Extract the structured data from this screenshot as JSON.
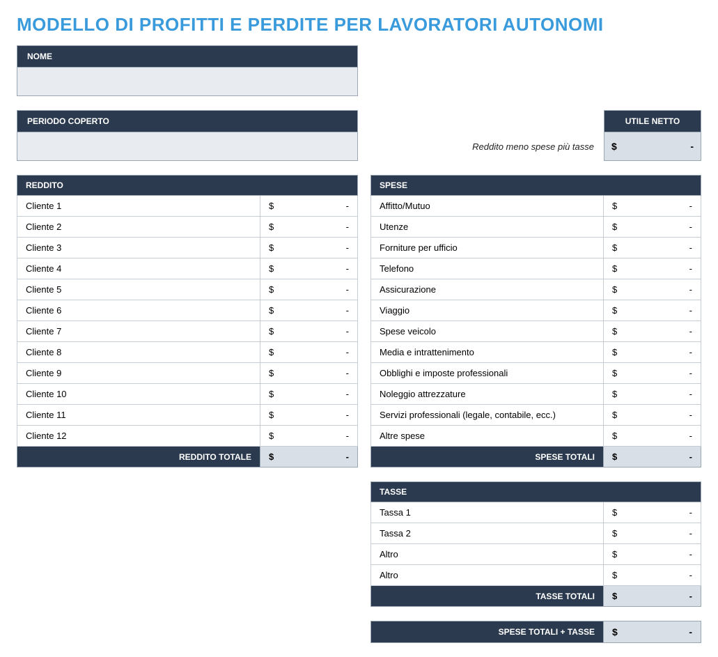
{
  "title": "MODELLO DI PROFITTI E PERDITE PER LAVORATORI AUTONOMI",
  "colors": {
    "title": "#3a9bdc",
    "header_bg": "#2b3a4e",
    "header_text": "#ffffff",
    "input_bg": "#e8ecf1",
    "total_amt_bg": "#d9dfe6",
    "border": "#c6cdd4",
    "border_dark": "#9aa6b2",
    "page_bg": "#ffffff"
  },
  "typography": {
    "title_fontsize": 26,
    "header_fontsize": 12,
    "body_fontsize": 13,
    "font_family": "Century Gothic"
  },
  "name_field": {
    "label": "NOME",
    "value": ""
  },
  "period_field": {
    "label": "PERIODO COPERTO",
    "value": ""
  },
  "net_income": {
    "header": "UTILE NETTO",
    "note": "Reddito meno spese più tasse",
    "currency": "$",
    "value": "-"
  },
  "revenue": {
    "header": "REDDITO",
    "rows": [
      {
        "label": "Cliente 1",
        "currency": "$",
        "value": "-"
      },
      {
        "label": "Cliente 2",
        "currency": "$",
        "value": "-"
      },
      {
        "label": "Cliente 3",
        "currency": "$",
        "value": "-"
      },
      {
        "label": "Cliente 4",
        "currency": "$",
        "value": "-"
      },
      {
        "label": "Cliente 5",
        "currency": "$",
        "value": "-"
      },
      {
        "label": "Cliente 6",
        "currency": "$",
        "value": "-"
      },
      {
        "label": "Cliente 7",
        "currency": "$",
        "value": "-"
      },
      {
        "label": "Cliente 8",
        "currency": "$",
        "value": "-"
      },
      {
        "label": "Cliente 9",
        "currency": "$",
        "value": "-"
      },
      {
        "label": "Cliente 10",
        "currency": "$",
        "value": "-"
      },
      {
        "label": "Cliente 11",
        "currency": "$",
        "value": "-"
      },
      {
        "label": "Cliente 12",
        "currency": "$",
        "value": "-"
      }
    ],
    "total": {
      "label": "REDDITO TOTALE",
      "currency": "$",
      "value": "-"
    }
  },
  "expenses": {
    "header": "SPESE",
    "rows": [
      {
        "label": "Affitto/Mutuo",
        "currency": "$",
        "value": "-"
      },
      {
        "label": "Utenze",
        "currency": "$",
        "value": "-"
      },
      {
        "label": "Forniture per ufficio",
        "currency": "$",
        "value": "-"
      },
      {
        "label": "Telefono",
        "currency": "$",
        "value": "-"
      },
      {
        "label": "Assicurazione",
        "currency": "$",
        "value": "-"
      },
      {
        "label": "Viaggio",
        "currency": "$",
        "value": "-"
      },
      {
        "label": "Spese veicolo",
        "currency": "$",
        "value": "-"
      },
      {
        "label": "Media e intrattenimento",
        "currency": "$",
        "value": "-"
      },
      {
        "label": "Obblighi e imposte professionali",
        "currency": "$",
        "value": "-"
      },
      {
        "label": "Noleggio attrezzature",
        "currency": "$",
        "value": "-"
      },
      {
        "label": "Servizi professionali (legale, contabile, ecc.)",
        "currency": "$",
        "value": "-"
      },
      {
        "label": "Altre spese",
        "currency": "$",
        "value": "-"
      }
    ],
    "total": {
      "label": "SPESE TOTALI",
      "currency": "$",
      "value": "-"
    }
  },
  "taxes": {
    "header": "TASSE",
    "rows": [
      {
        "label": "Tassa 1",
        "currency": "$",
        "value": "-"
      },
      {
        "label": "Tassa 2",
        "currency": "$",
        "value": "-"
      },
      {
        "label": "Altro",
        "currency": "$",
        "value": "-"
      },
      {
        "label": "Altro",
        "currency": "$",
        "value": "-"
      }
    ],
    "total": {
      "label": "TASSE TOTALI",
      "currency": "$",
      "value": "-"
    }
  },
  "expenses_plus_taxes": {
    "label": "SPESE TOTALI + TASSE",
    "currency": "$",
    "value": "-"
  }
}
